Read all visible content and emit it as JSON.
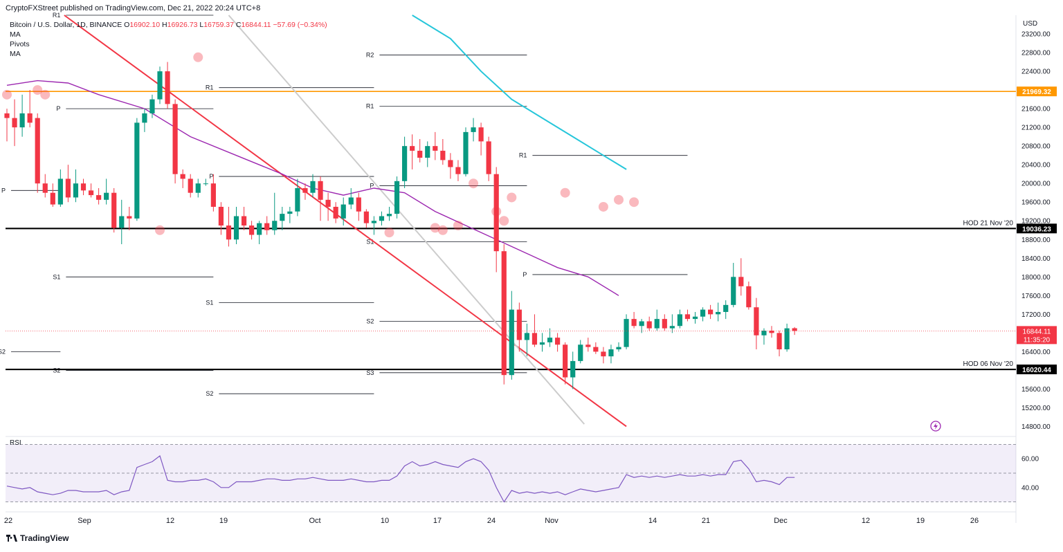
{
  "header": {
    "publisher_line": "CryptoFXStreet published on TradingView.com, Dec 21, 2022 20:24 UTC+8"
  },
  "legend": {
    "symbol": "Bitcoin / U.S. Dollar, 1D, BINANCE",
    "open_label": "O",
    "open": "16902.10",
    "high_label": "H",
    "high": "16926.73",
    "low_label": "L",
    "low": "16759.37",
    "close_label": "C",
    "close": "16844.11",
    "change": "−57.69 (−0.34%)",
    "indicators": [
      "MA",
      "Pivots",
      "MA"
    ]
  },
  "footer": {
    "brand": "TradingView"
  },
  "chart_data": {
    "type": "candlestick",
    "symbol": "Bitcoin / U.S. Dollar, 1D, BINANCE",
    "y_axis_unit": "USD",
    "ylim": [
      14600,
      23600
    ],
    "y_ticks": [
      14800,
      15200,
      15600,
      16000,
      16400,
      16800,
      17200,
      17600,
      18000,
      18400,
      18800,
      19200,
      19600,
      20000,
      20400,
      20800,
      21200,
      21600,
      22000,
      22400,
      22800,
      23200
    ],
    "x_tick_labels": [
      "22",
      "Sep",
      "12",
      "19",
      "Oct",
      "10",
      "17",
      "24",
      "Nov",
      "14",
      "21",
      "Dec",
      "12",
      "19",
      "26"
    ],
    "current_price": {
      "value": 16844.11,
      "label": "16844.11",
      "countdown": "11:35:20"
    },
    "horizontal_levels": [
      {
        "value": 21969.32,
        "label": "21969.32",
        "color": "#ff9800"
      },
      {
        "value": 19036.23,
        "label": "19036.23",
        "note": "HOD 21 Nov '20",
        "color": "#000000"
      },
      {
        "value": 16020.44,
        "label": "16020.44",
        "note": "HOD 06 Nov '20",
        "color": "#000000"
      }
    ],
    "pivot_labels": [
      "R1",
      "P",
      "S1",
      "S2",
      "R2",
      "S3"
    ],
    "pivots": [
      {
        "from": 0,
        "to": 7,
        "levels": [
          {
            "name": "P",
            "value": 19850
          },
          {
            "name": "S2",
            "value": 16400
          }
        ]
      },
      {
        "from": 7,
        "to": 27,
        "levels": [
          {
            "name": "R1",
            "value": 23600
          },
          {
            "name": "P",
            "value": 21600
          },
          {
            "name": "S1",
            "value": 18000
          },
          {
            "name": "S2",
            "value": 16000
          }
        ]
      },
      {
        "from": 27,
        "to": 48,
        "levels": [
          {
            "name": "R1",
            "value": 22050
          },
          {
            "name": "P",
            "value": 20150
          },
          {
            "name": "S1",
            "value": 17450
          },
          {
            "name": "S2",
            "value": 15500
          }
        ]
      },
      {
        "from": 48,
        "to": 68,
        "levels": [
          {
            "name": "R2",
            "value": 22750
          },
          {
            "name": "R1",
            "value": 21650
          },
          {
            "name": "P",
            "value": 19950
          },
          {
            "name": "S1",
            "value": 18750
          },
          {
            "name": "S2",
            "value": 17050
          },
          {
            "name": "S3",
            "value": 15950
          }
        ]
      },
      {
        "from": 68,
        "to": 89,
        "levels": [
          {
            "name": "R1",
            "value": 20600
          },
          {
            "name": "P",
            "value": 18050
          }
        ]
      }
    ],
    "trendlines": [
      {
        "color": "#f23645",
        "points": [
          [
            7.5,
            23600
          ],
          [
            81,
            14800
          ]
        ]
      },
      {
        "color": "#cccccc",
        "points": [
          [
            29,
            23600
          ],
          [
            75.5,
            14850
          ]
        ]
      }
    ],
    "moving_averages": [
      {
        "color": "#9c27b0",
        "points": [
          [
            0,
            22100
          ],
          [
            4,
            22200
          ],
          [
            8,
            22150
          ],
          [
            12,
            21900
          ],
          [
            18,
            21600
          ],
          [
            24,
            21000
          ],
          [
            30,
            20600
          ],
          [
            36,
            20200
          ],
          [
            40,
            19900
          ],
          [
            44,
            19750
          ],
          [
            48,
            19900
          ],
          [
            52,
            19800
          ],
          [
            56,
            19400
          ],
          [
            60,
            19100
          ],
          [
            64,
            18800
          ],
          [
            68,
            18500
          ],
          [
            72,
            18200
          ],
          [
            76,
            18000
          ],
          [
            80,
            17600
          ]
        ]
      },
      {
        "color": "#26c6da",
        "points": [
          [
            53,
            23600
          ],
          [
            58,
            23100
          ],
          [
            62,
            22400
          ],
          [
            66,
            21800
          ],
          [
            70,
            21400
          ],
          [
            74,
            21000
          ],
          [
            78,
            20600
          ],
          [
            81,
            20300
          ]
        ]
      }
    ],
    "candles": [
      [
        21500,
        21600,
        20900,
        21400
      ],
      [
        21400,
        21800,
        20800,
        21200
      ],
      [
        21200,
        21900,
        21000,
        21500
      ],
      [
        21500,
        22000,
        21200,
        21300
      ],
      [
        21400,
        21500,
        19800,
        20000
      ],
      [
        20000,
        20200,
        19700,
        19800
      ],
      [
        19800,
        20000,
        19500,
        19550
      ],
      [
        19550,
        20300,
        19500,
        20100
      ],
      [
        20100,
        20400,
        19600,
        19700
      ],
      [
        19700,
        20300,
        19600,
        20000
      ],
      [
        20000,
        20100,
        19750,
        19850
      ],
      [
        19850,
        20000,
        19700,
        19750
      ],
      [
        19750,
        19900,
        19550,
        19650
      ],
      [
        19650,
        20100,
        19550,
        19800
      ],
      [
        19800,
        19900,
        18950,
        19050
      ],
      [
        19050,
        19650,
        18700,
        19300
      ],
      [
        19300,
        19500,
        19000,
        19250
      ],
      [
        19250,
        21400,
        19200,
        21300
      ],
      [
        21300,
        21600,
        21100,
        21500
      ],
      [
        21500,
        21900,
        21400,
        21800
      ],
      [
        21800,
        22500,
        21700,
        22400
      ],
      [
        22400,
        22600,
        21600,
        21700
      ],
      [
        21700,
        21800,
        20000,
        20200
      ],
      [
        20200,
        20300,
        19900,
        20100
      ],
      [
        20100,
        20200,
        19700,
        19800
      ],
      [
        19800,
        20100,
        19700,
        20000
      ],
      [
        20000,
        20100,
        19950,
        20000
      ],
      [
        20000,
        20200,
        19400,
        19500
      ],
      [
        19500,
        19600,
        18900,
        19100
      ],
      [
        19100,
        19500,
        18650,
        18800
      ],
      [
        18800,
        19500,
        18700,
        19300
      ],
      [
        19300,
        19500,
        19000,
        19100
      ],
      [
        19100,
        19200,
        18800,
        18900
      ],
      [
        18900,
        19200,
        18700,
        19150
      ],
      [
        19150,
        19300,
        18900,
        19000
      ],
      [
        19000,
        19800,
        18900,
        19200
      ],
      [
        19200,
        19500,
        19000,
        19350
      ],
      [
        19350,
        19500,
        19150,
        19400
      ],
      [
        19400,
        20100,
        19300,
        19900
      ],
      [
        19900,
        20000,
        19650,
        19800
      ],
      [
        19800,
        20200,
        19700,
        20050
      ],
      [
        20050,
        20150,
        19200,
        19650
      ],
      [
        19650,
        19800,
        19200,
        19500
      ],
      [
        19500,
        19600,
        19150,
        19250
      ],
      [
        19250,
        19700,
        19100,
        19550
      ],
      [
        19550,
        19900,
        19450,
        19700
      ],
      [
        19700,
        19800,
        19200,
        19400
      ],
      [
        19400,
        19450,
        19050,
        19150
      ],
      [
        19150,
        19300,
        18900,
        19200
      ],
      [
        19200,
        19400,
        19100,
        19300
      ],
      [
        19300,
        19500,
        19200,
        19350
      ],
      [
        19350,
        20150,
        19250,
        20050
      ],
      [
        20050,
        21000,
        19900,
        20800
      ],
      [
        20800,
        21050,
        20300,
        20700
      ],
      [
        20700,
        20950,
        20450,
        20550
      ],
      [
        20550,
        20900,
        20350,
        20800
      ],
      [
        20800,
        21100,
        20500,
        20700
      ],
      [
        20700,
        20950,
        20400,
        20500
      ],
      [
        20500,
        20650,
        20100,
        20350
      ],
      [
        20350,
        20500,
        20050,
        20200
      ],
      [
        20200,
        21200,
        20150,
        21100
      ],
      [
        21100,
        21400,
        20900,
        21200
      ],
      [
        21200,
        21300,
        20600,
        20900
      ],
      [
        20900,
        21000,
        20050,
        20200
      ],
      [
        20200,
        20350,
        18100,
        18550
      ],
      [
        18550,
        18700,
        15700,
        15900
      ],
      [
        15900,
        17700,
        15800,
        17300
      ],
      [
        17300,
        17450,
        16400,
        16650
      ],
      [
        16650,
        17000,
        16300,
        16800
      ],
      [
        16800,
        17200,
        16500,
        16550
      ],
      [
        16550,
        16800,
        16400,
        16600
      ],
      [
        16600,
        16900,
        16500,
        16700
      ],
      [
        16700,
        16800,
        16400,
        16550
      ],
      [
        16550,
        16600,
        15700,
        15850
      ],
      [
        15850,
        16400,
        15600,
        16200
      ],
      [
        16200,
        16650,
        16150,
        16550
      ],
      [
        16550,
        16700,
        16400,
        16500
      ],
      [
        16500,
        16600,
        16350,
        16400
      ],
      [
        16400,
        16500,
        16150,
        16300
      ],
      [
        16300,
        16550,
        16150,
        16450
      ],
      [
        16450,
        16600,
        16400,
        16500
      ],
      [
        16500,
        17200,
        16450,
        17100
      ],
      [
        17100,
        17250,
        16900,
        16950
      ],
      [
        16950,
        17100,
        16800,
        17050
      ],
      [
        17050,
        17150,
        16850,
        16900
      ],
      [
        16900,
        17300,
        16850,
        17100
      ],
      [
        17100,
        17200,
        16850,
        16900
      ],
      [
        16900,
        17200,
        16800,
        16950
      ],
      [
        16950,
        17300,
        16900,
        17200
      ],
      [
        17200,
        17300,
        17050,
        17100
      ],
      [
        17100,
        17250,
        17000,
        17150
      ],
      [
        17150,
        17350,
        17050,
        17300
      ],
      [
        17300,
        17400,
        17100,
        17200
      ],
      [
        17200,
        17450,
        17050,
        17250
      ],
      [
        17250,
        17500,
        17100,
        17400
      ],
      [
        17400,
        18300,
        17350,
        18000
      ],
      [
        18000,
        18400,
        17600,
        17800
      ],
      [
        17800,
        17900,
        17300,
        17350
      ],
      [
        17350,
        17550,
        16450,
        16750
      ],
      [
        16750,
        16900,
        16550,
        16850
      ],
      [
        16850,
        16950,
        16700,
        16800
      ],
      [
        16800,
        16850,
        16300,
        16450
      ],
      [
        16450,
        17000,
        16400,
        16900
      ],
      [
        16902.1,
        16926.73,
        16759.37,
        16844.11
      ]
    ],
    "highlight_circles": [
      [
        0,
        21900
      ],
      [
        4,
        22000
      ],
      [
        5,
        21900
      ],
      [
        25,
        22700
      ],
      [
        20,
        19000
      ],
      [
        50,
        18950
      ],
      [
        56,
        19050
      ],
      [
        57,
        19000
      ],
      [
        59,
        19100
      ],
      [
        61,
        20000
      ],
      [
        64,
        19400
      ],
      [
        65,
        19200
      ],
      [
        66,
        19700
      ],
      [
        73,
        19800
      ],
      [
        78,
        19500
      ],
      [
        80,
        19650
      ],
      [
        82,
        19600
      ]
    ],
    "rsi": {
      "label": "RSI",
      "ylim": [
        25,
        75
      ],
      "band": [
        30,
        70
      ],
      "mid": 50,
      "y_ticks": [
        40,
        60
      ],
      "values": [
        41,
        40,
        39,
        40,
        37,
        36,
        35,
        36,
        38,
        38,
        37,
        37,
        37,
        38,
        35,
        37,
        38,
        54,
        56,
        58,
        62,
        45,
        44,
        44,
        45,
        45,
        46,
        44,
        40,
        40,
        44,
        44,
        44,
        45,
        46,
        46,
        45,
        45,
        46,
        46,
        47,
        46,
        45,
        45,
        45,
        46,
        45,
        44,
        44,
        45,
        45,
        48,
        55,
        58,
        55,
        56,
        58,
        56,
        55,
        54,
        58,
        60,
        58,
        52,
        40,
        30,
        38,
        36,
        37,
        36,
        37,
        36,
        37,
        35,
        37,
        39,
        38,
        37,
        38,
        39,
        40,
        49,
        47,
        48,
        47,
        48,
        47,
        48,
        49,
        48,
        48,
        49,
        48,
        49,
        49,
        58,
        59,
        53,
        44,
        45,
        44,
        42,
        47,
        47
      ]
    }
  }
}
